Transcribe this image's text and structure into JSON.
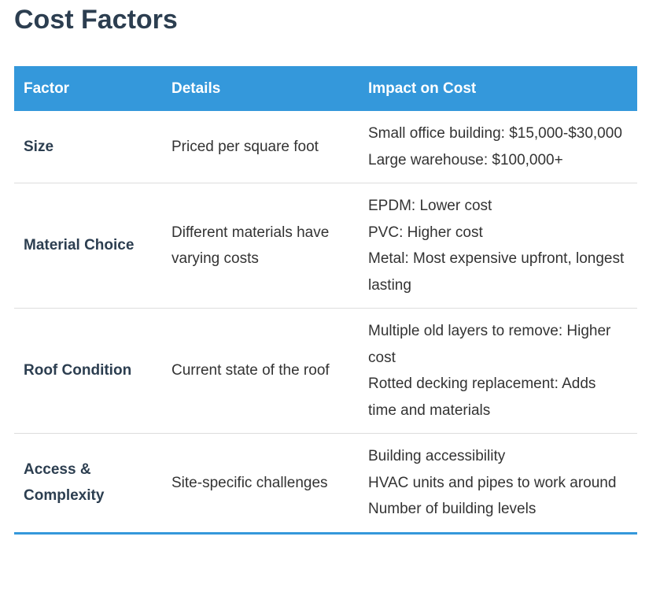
{
  "title": "Cost Factors",
  "table": {
    "header": [
      "Factor",
      "Details",
      "Impact on Cost"
    ],
    "rows": [
      [
        "Size",
        "Priced per square foot",
        [
          "Small office building: $15,000-$30,000",
          "Large warehouse: $100,000+"
        ]
      ],
      [
        "Material Choice",
        "Different materials have varying costs",
        [
          "EPDM: Lower cost",
          "PVC: Higher cost",
          "Metal: Most expensive upfront, longest lasting"
        ]
      ],
      [
        "Roof Condition",
        "Current state of the roof",
        [
          "Multiple old layers to remove: Higher cost",
          "Rotted decking replacement: Adds time and materials"
        ]
      ],
      [
        "Access & Complexity",
        "Site-specific challenges",
        [
          "Building accessibility",
          "HVAC units and pipes to work around",
          "Number of building levels"
        ]
      ]
    ]
  }
}
